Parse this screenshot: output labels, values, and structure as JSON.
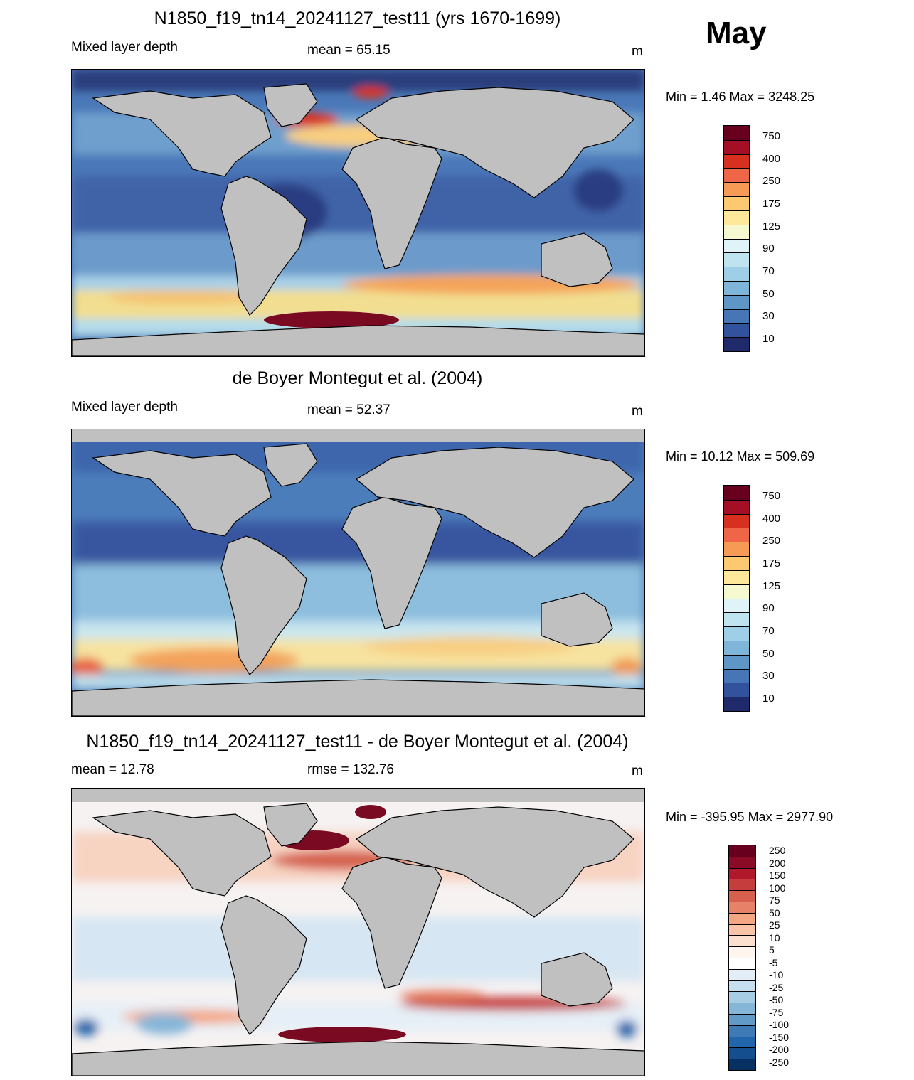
{
  "month": "May",
  "colors": {
    "ocean_deep": "#3b63a6",
    "land": "#c0c0c0",
    "coast": "#000000"
  },
  "panels": [
    {
      "id": "model",
      "title": "N1850_f19_tn14_20241127_test11 (yrs 1670-1699)",
      "left_label": "Mixed layer depth",
      "center_label": "mean =  65.15",
      "right_label": "m",
      "minmax": "Min =   1.46 Max = 3248.25",
      "colorbar": {
        "labels": [
          "750",
          "400",
          "250",
          "175",
          "125",
          "90",
          "70",
          "50",
          "30",
          "10"
        ],
        "colors": [
          "#67001f",
          "#a50f25",
          "#d7301f",
          "#ef6548",
          "#f59b55",
          "#fcc870",
          "#fee99a",
          "#f6f8d0",
          "#e0f3f8",
          "#bfe3ef",
          "#9fcfe6",
          "#7fb5d9",
          "#5e96c8",
          "#4676b6",
          "#31539d",
          "#1e2a6a"
        ]
      }
    },
    {
      "id": "obs",
      "title": "de Boyer Montegut et al. (2004)",
      "left_label": "Mixed layer depth",
      "center_label": "mean =  52.37",
      "right_label": "m",
      "minmax": "Min =  10.12 Max = 509.69",
      "colorbar": {
        "labels": [
          "750",
          "400",
          "250",
          "175",
          "125",
          "90",
          "70",
          "50",
          "30",
          "10"
        ],
        "colors": [
          "#67001f",
          "#a50f25",
          "#d7301f",
          "#ef6548",
          "#f59b55",
          "#fcc870",
          "#fee99a",
          "#f6f8d0",
          "#e0f3f8",
          "#bfe3ef",
          "#9fcfe6",
          "#7fb5d9",
          "#5e96c8",
          "#4676b6",
          "#31539d",
          "#1e2a6a"
        ]
      }
    },
    {
      "id": "diff",
      "title": "N1850_f19_tn14_20241127_test11 - de Boyer Montegut et al. (2004)",
      "left_label": "mean =  12.78",
      "center_label": "rmse = 132.76",
      "right_label": "m",
      "minmax": "Min = -395.95 Max = 2977.90",
      "colorbar": {
        "labels": [
          "250",
          "200",
          "150",
          "100",
          "75",
          "50",
          "25",
          "10",
          "5",
          "-5",
          "-10",
          "-25",
          "-50",
          "-75",
          "-100",
          "-150",
          "-200",
          "-250"
        ],
        "colors": [
          "#67001f",
          "#8b0a26",
          "#b2182b",
          "#c53e3d",
          "#d6604d",
          "#e58267",
          "#f4a582",
          "#f8c3a6",
          "#fbdfcf",
          "#fff5ef",
          "#ffffff",
          "#e2eef6",
          "#c6dfee",
          "#a6cde4",
          "#85b6d8",
          "#6199c7",
          "#3d7ab6",
          "#2166ac",
          "#144e8f",
          "#053061"
        ]
      }
    }
  ]
}
